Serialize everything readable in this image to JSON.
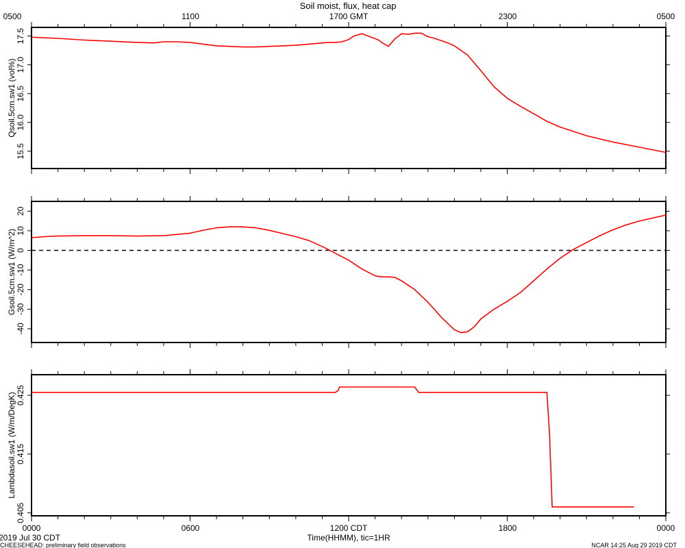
{
  "figure": {
    "title": "Soil moist, flux, heat cap",
    "top_axis_label": "1700 GMT",
    "top_ticks": [
      "0500",
      "1100",
      "1700 GMT",
      "2300",
      "0500"
    ],
    "bottom_ticks": [
      "0000",
      "0600",
      "1200 CDT",
      "1800",
      "0000"
    ],
    "xlabel": "Time(HHMM), tic=1HR",
    "date_label": "2019 Jul 30 CDT",
    "footer_left": "CHEESEHEAD: preliminary field observations",
    "footer_right": "NCAR 14:25 Aug 29 2019 CDT",
    "line_color": "#ff0000"
  },
  "chart_data": [
    {
      "type": "line",
      "title": "",
      "xlabel": "",
      "ylabel": "Qsoil.5cm.sw1 (vol%)",
      "xlim": [
        0,
        24
      ],
      "ylim": [
        15.2,
        17.65
      ],
      "yticks": [
        15.5,
        16.0,
        16.5,
        17.0,
        17.5
      ],
      "ytick_labels": [
        "15.5",
        "16.0",
        "16.5",
        "17.0",
        "17.5"
      ],
      "grid": false,
      "series": [
        {
          "color": "#ff0000",
          "x": [
            0,
            1,
            2,
            3,
            4,
            4.6,
            5,
            5.5,
            6,
            6.5,
            7,
            7.5,
            8,
            8.5,
            9,
            9.5,
            10,
            10.5,
            11,
            11.25,
            11.5,
            11.75,
            12,
            12.2,
            12.5,
            12.75,
            12.9,
            13.1,
            13.25,
            13.5,
            13.75,
            14,
            14.25,
            14.5,
            14.75,
            15,
            15.25,
            15.5,
            15.75,
            16,
            16.5,
            17,
            17.5,
            18,
            18.5,
            19,
            19.5,
            20,
            21,
            22,
            23,
            24
          ],
          "y": [
            17.48,
            17.46,
            17.43,
            17.41,
            17.39,
            17.38,
            17.4,
            17.4,
            17.39,
            17.36,
            17.33,
            17.32,
            17.31,
            17.31,
            17.32,
            17.33,
            17.34,
            17.36,
            17.38,
            17.39,
            17.39,
            17.4,
            17.44,
            17.5,
            17.54,
            17.5,
            17.47,
            17.44,
            17.39,
            17.32,
            17.45,
            17.54,
            17.53,
            17.55,
            17.55,
            17.49,
            17.46,
            17.42,
            17.38,
            17.33,
            17.17,
            16.9,
            16.62,
            16.42,
            16.28,
            16.15,
            16.02,
            15.92,
            15.77,
            15.66,
            15.57,
            15.48
          ]
        }
      ]
    },
    {
      "type": "line",
      "title": "",
      "xlabel": "",
      "ylabel": "Gsoil.5cm.sw1 (W/m^2)",
      "xlim": [
        0,
        24
      ],
      "ylim": [
        -47,
        25
      ],
      "yticks": [
        20,
        10,
        0,
        -10,
        -20,
        -30,
        -40
      ],
      "ytick_labels": [
        "20",
        "10",
        "0",
        "-10",
        "-20",
        "-30",
        "-40"
      ],
      "grid": false,
      "reference_line": {
        "y": 0,
        "style": "dashed",
        "color": "#000000"
      },
      "series": [
        {
          "color": "#ff0000",
          "x": [
            0,
            0.5,
            1,
            2,
            3,
            4,
            5,
            6,
            6.5,
            7,
            7.5,
            8,
            8.5,
            9,
            9.5,
            10,
            10.5,
            11,
            11.5,
            12,
            12.5,
            13,
            13.25,
            13.5,
            13.75,
            14,
            14.5,
            15,
            15.5,
            16,
            16.25,
            16.5,
            16.75,
            17,
            17.5,
            18,
            18.5,
            19,
            19.5,
            20,
            20.5,
            21,
            21.5,
            22,
            22.5,
            23,
            23.5,
            24
          ],
          "y": [
            6.5,
            7.0,
            7.3,
            7.5,
            7.5,
            7.3,
            7.5,
            8.8,
            10.3,
            11.5,
            12.0,
            12.0,
            11.5,
            10.2,
            8.6,
            7.0,
            5.0,
            2.0,
            -1.5,
            -5.0,
            -9.5,
            -13.0,
            -13.5,
            -13.5,
            -13.8,
            -15.5,
            -20.0,
            -26.5,
            -34.0,
            -40.5,
            -42.0,
            -41.5,
            -39.0,
            -35.0,
            -30.0,
            -26.0,
            -21.5,
            -15.5,
            -9.5,
            -4.0,
            0.5,
            4.0,
            7.5,
            10.5,
            13.0,
            15.0,
            16.5,
            18.0
          ]
        }
      ]
    },
    {
      "type": "line",
      "title": "",
      "xlabel": "",
      "ylabel": "Lambdasoil.sw1 (W/m/DegK)",
      "xlim": [
        0,
        24
      ],
      "ylim": [
        0.4045,
        0.4285
      ],
      "yticks": [
        0.405,
        0.415,
        0.425
      ],
      "ytick_labels": [
        "0.405",
        "0.415",
        "0.425"
      ],
      "grid": false,
      "series": [
        {
          "color": "#ff0000",
          "x": [
            0,
            11.5,
            11.6,
            11.65,
            14.5,
            14.55,
            14.65,
            19.5,
            19.6,
            19.7,
            21.0,
            22.8
          ],
          "y": [
            0.4255,
            0.4255,
            0.4258,
            0.4264,
            0.4264,
            0.4261,
            0.4255,
            0.4255,
            0.4185,
            0.406,
            0.406,
            0.406
          ]
        }
      ]
    }
  ]
}
